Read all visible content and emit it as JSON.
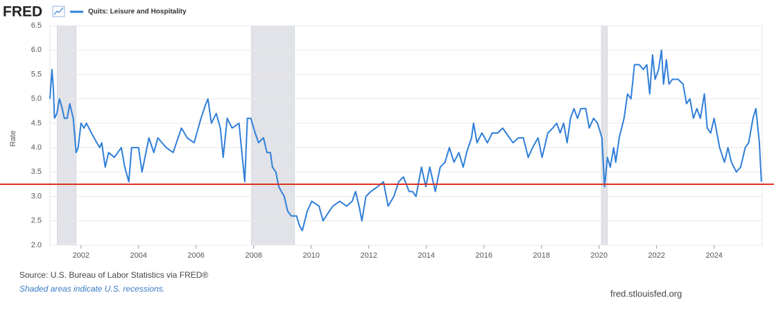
{
  "brand": "FRED",
  "chart_data": {
    "type": "line",
    "x": [
      2000.92,
      2000.99,
      2001.04,
      2001.08,
      2001.16,
      2001.25,
      2001.35,
      2001.42,
      2001.52,
      2001.61,
      2001.73,
      2001.83,
      2001.9,
      2002.0,
      2002.1,
      2002.19,
      2002.36,
      2002.55,
      2002.65,
      2002.72,
      2002.84,
      2002.96,
      2003.16,
      2003.4,
      2003.52,
      2003.66,
      2003.76,
      2004.0,
      2004.12,
      2004.36,
      2004.53,
      2004.67,
      2004.96,
      2005.2,
      2005.49,
      2005.69,
      2005.93,
      2006.17,
      2006.34,
      2006.41,
      2006.53,
      2006.7,
      2006.84,
      2006.94,
      2007.08,
      2007.25,
      2007.49,
      2007.69,
      2007.78,
      2007.9,
      2008.05,
      2008.17,
      2008.34,
      2008.46,
      2008.58,
      2008.65,
      2008.77,
      2008.87,
      2009.06,
      2009.18,
      2009.3,
      2009.49,
      2009.59,
      2009.69,
      2009.86,
      2010.02,
      2010.27,
      2010.41,
      2010.63,
      2010.75,
      2010.99,
      2011.23,
      2011.42,
      2011.54,
      2011.66,
      2011.76,
      2011.9,
      2012.07,
      2012.31,
      2012.51,
      2012.67,
      2012.87,
      2013.04,
      2013.2,
      2013.4,
      2013.52,
      2013.64,
      2013.83,
      2013.98,
      2014.12,
      2014.31,
      2014.48,
      2014.65,
      2014.8,
      2014.96,
      2015.13,
      2015.28,
      2015.4,
      2015.57,
      2015.64,
      2015.76,
      2015.93,
      2016.12,
      2016.29,
      2016.48,
      2016.65,
      2016.77,
      2017.01,
      2017.2,
      2017.37,
      2017.54,
      2017.69,
      2017.88,
      2018.02,
      2018.22,
      2018.39,
      2018.53,
      2018.65,
      2018.77,
      2018.89,
      2019.01,
      2019.13,
      2019.25,
      2019.37,
      2019.54,
      2019.66,
      2019.81,
      2019.95,
      2020.1,
      2020.19,
      2020.29,
      2020.39,
      2020.51,
      2020.58,
      2020.7,
      2020.87,
      2020.99,
      2021.11,
      2021.23,
      2021.4,
      2021.54,
      2021.66,
      2021.76,
      2021.86,
      2021.95,
      2022.07,
      2022.17,
      2022.24,
      2022.34,
      2022.43,
      2022.55,
      2022.75,
      2022.92,
      2023.04,
      2023.16,
      2023.28,
      2023.4,
      2023.52,
      2023.66,
      2023.76,
      2023.88,
      2024.0,
      2024.19,
      2024.36,
      2024.48,
      2024.6,
      2024.77,
      2024.92,
      2025.08,
      2025.2,
      2025.35,
      2025.45,
      2025.57,
      2025.64
    ],
    "series": [
      {
        "name": "Quits: Leisure and Hospitality",
        "color": "#2f7ed8",
        "values": [
          5.0,
          5.6,
          5.2,
          4.6,
          4.7,
          5.0,
          4.8,
          4.6,
          4.6,
          4.9,
          4.6,
          3.9,
          4.0,
          4.5,
          4.4,
          4.5,
          4.3,
          4.1,
          4.0,
          4.1,
          3.6,
          3.9,
          3.8,
          4.0,
          3.6,
          3.3,
          4.0,
          4.0,
          3.5,
          4.2,
          3.9,
          4.2,
          4.0,
          3.9,
          4.4,
          4.2,
          4.1,
          4.6,
          4.9,
          5.0,
          4.5,
          4.7,
          4.4,
          3.8,
          4.6,
          4.4,
          4.5,
          3.3,
          4.6,
          4.6,
          4.3,
          4.1,
          4.2,
          3.9,
          3.9,
          3.6,
          3.5,
          3.2,
          3.0,
          2.7,
          2.6,
          2.6,
          2.4,
          2.3,
          2.7,
          2.9,
          2.8,
          2.5,
          2.7,
          2.8,
          2.9,
          2.8,
          2.9,
          3.1,
          2.8,
          2.5,
          3.0,
          3.1,
          3.2,
          3.3,
          2.8,
          3.0,
          3.3,
          3.4,
          3.1,
          3.1,
          3.0,
          3.6,
          3.2,
          3.6,
          3.1,
          3.6,
          3.7,
          4.0,
          3.7,
          3.9,
          3.6,
          3.9,
          4.2,
          4.5,
          4.1,
          4.3,
          4.1,
          4.3,
          4.3,
          4.4,
          4.3,
          4.1,
          4.2,
          4.2,
          3.8,
          4.0,
          4.2,
          3.8,
          4.3,
          4.4,
          4.5,
          4.3,
          4.5,
          4.1,
          4.6,
          4.8,
          4.6,
          4.8,
          4.8,
          4.4,
          4.6,
          4.5,
          4.2,
          3.2,
          3.8,
          3.6,
          4.0,
          3.7,
          4.2,
          4.6,
          5.1,
          5.0,
          5.7,
          5.7,
          5.6,
          5.7,
          5.1,
          5.9,
          5.4,
          5.6,
          6.0,
          5.3,
          5.8,
          5.3,
          5.4,
          5.4,
          5.3,
          4.9,
          5.0,
          4.6,
          4.8,
          4.6,
          5.1,
          4.4,
          4.3,
          4.6,
          4.0,
          3.7,
          4.0,
          3.7,
          3.5,
          3.6,
          4.0,
          4.1,
          4.6,
          4.8,
          4.1,
          3.3
        ]
      }
    ],
    "recessions": [
      [
        2001.17,
        2001.83
      ],
      [
        2007.92,
        2009.42
      ],
      [
        2020.08,
        2020.29
      ]
    ],
    "recession_color": "#e1e3e8",
    "reference_line": {
      "value": 3.25,
      "color": "#e0301e"
    },
    "y_label": "Rate",
    "xlim": [
      2000.92,
      2025.67
    ],
    "xticks": [
      2002,
      2004,
      2006,
      2008,
      2010,
      2012,
      2014,
      2016,
      2018,
      2020,
      2022,
      2024
    ],
    "ylim": [
      2.0,
      6.5
    ],
    "yticks": [
      {
        "value": 2,
        "label": "2.0"
      },
      2.5,
      {
        "value": 3,
        "label": "3.0"
      },
      3.5,
      {
        "value": 4,
        "label": "4.0"
      },
      4.5,
      {
        "value": 5,
        "label": "5.0"
      },
      5.5,
      {
        "value": 6,
        "label": "6.0"
      },
      6.5
    ],
    "grid": true
  },
  "footer": {
    "source": "Source: U.S. Bureau of Labor Statistics via FRED®",
    "note": "Shaded areas indicate U.S. recessions.",
    "site": "fred.stlouisfed.org"
  }
}
